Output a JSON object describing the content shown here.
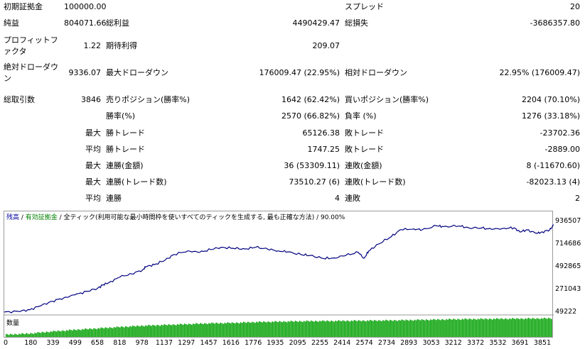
{
  "report": {
    "rows": [
      {
        "c1_label": "初期証拠金",
        "c1_value": "100000.00",
        "c2_label": "",
        "c2_value": "",
        "c3_label": "スプレッド",
        "c3_value": "20"
      },
      {
        "c1_label": "純益",
        "c1_value": "804071.66",
        "c2_label": "総利益",
        "c2_value": "4490429.47",
        "c3_label": "総損失",
        "c3_value": "-3686357.80"
      },
      {
        "c1_label": "プロフィットファクタ",
        "c1_value": "1.22",
        "c2_label": "期待利得",
        "c2_value": "209.07",
        "c3_label": "",
        "c3_value": ""
      },
      {
        "c1_label": "絶対ドローダウン",
        "c1_value": "9336.07",
        "c2_label": "最大ドローダウン",
        "c2_value": "176009.47 (22.95%)",
        "c3_label": "相対ドローダウン",
        "c3_value": "22.95% (176009.47)"
      },
      {
        "c1_label": "総取引数",
        "c1_value": "3846",
        "c2_label": "売りポジション(勝率%)",
        "c2_value": "1642 (62.42%)",
        "c3_label": "買いポジション(勝率%)",
        "c3_value": "2204 (70.10%)"
      },
      {
        "sub": "",
        "c2_label": "勝率(%)",
        "c2_value": "2570 (66.82%)",
        "c3_label": "負率 (%)",
        "c3_value": "1276 (33.18%)"
      },
      {
        "sub": "最大",
        "c2_label": "勝トレード",
        "c2_value": "65126.38",
        "c3_label": "敗トレード",
        "c3_value": "-23702.36"
      },
      {
        "sub": "平均",
        "c2_label": "勝トレード",
        "c2_value": "1747.25",
        "c3_label": "敗トレード",
        "c3_value": "-2889.00"
      },
      {
        "sub": "最大",
        "c2_label": "連勝(金額)",
        "c2_value": "36 (53309.11)",
        "c3_label": "連敗(金額)",
        "c3_value": "8 (-11670.60)"
      },
      {
        "sub": "最大",
        "c2_label": "連勝(トレード数)",
        "c2_value": "73510.27 (6)",
        "c3_label": "連敗(トレード数)",
        "c3_value": "-82023.13 (4)"
      },
      {
        "sub": "平均",
        "c2_label": "連勝",
        "c2_value": "4",
        "c3_label": "連敗",
        "c3_value": "2"
      }
    ]
  },
  "chart": {
    "caption": {
      "balance": "残高",
      "sep1": " / ",
      "equity": "有効証拠金",
      "rest": " / 全ティック(利用可能な最小時間枠を使いすべてのティックを生成する, 最も正確な方法) / 90.00%"
    },
    "volume_label": "数量",
    "colors": {
      "balance": "#000080",
      "volume": "#00a000",
      "border": "#9a9a9a"
    }
  },
  "chart_data": {
    "type": "line",
    "title": "",
    "y_ticks": [
      "936507",
      "714686",
      "492865",
      "271043",
      "49222"
    ],
    "y_tick_values": [
      936507,
      714686,
      492865,
      271043,
      49222
    ],
    "x_ticks": [
      "0",
      "180",
      "339",
      "499",
      "658",
      "818",
      "978",
      "1137",
      "1297",
      "1457",
      "1616",
      "1776",
      "1935",
      "2095",
      "2255",
      "2414",
      "2574",
      "2734",
      "2893",
      "3053",
      "3212",
      "3372",
      "3532",
      "3691",
      "3851"
    ],
    "x_tick_values": [
      0,
      180,
      339,
      499,
      658,
      818,
      978,
      1137,
      1297,
      1457,
      1616,
      1776,
      1935,
      2095,
      2255,
      2414,
      2574,
      2734,
      2893,
      3053,
      3212,
      3372,
      3532,
      3691,
      3851
    ],
    "ylim": [
      49222,
      936507
    ],
    "xlim": [
      0,
      3880
    ],
    "series": [
      {
        "x": [
          0,
          100,
          180,
          260,
          339,
          420,
          499,
          580,
          658,
          700,
          740,
          818,
          900,
          978,
          1000,
          1060,
          1137,
          1200,
          1297,
          1380,
          1457,
          1530,
          1616,
          1700,
          1776,
          1860,
          1935,
          2000,
          2095,
          2160,
          2255,
          2330,
          2414,
          2500,
          2540,
          2574,
          2640,
          2734,
          2800,
          2893,
          2950,
          3053,
          3100,
          3212,
          3280,
          3372,
          3440,
          3532,
          3600,
          3640,
          3691,
          3760,
          3800,
          3851,
          3880
        ],
        "y": [
          57000,
          63000,
          80000,
          120000,
          163000,
          195000,
          225000,
          258000,
          288000,
          325000,
          345000,
          400000,
          430000,
          470000,
          500000,
          520000,
          565000,
          620000,
          655000,
          640000,
          668000,
          690000,
          680000,
          673000,
          690000,
          672000,
          655000,
          645000,
          618000,
          610000,
          580000,
          586000,
          612000,
          640000,
          582000,
          653000,
          720000,
          795000,
          862000,
          870000,
          860000,
          899000,
          892000,
          898000,
          880000,
          878000,
          865000,
          876000,
          880000,
          840000,
          860000,
          825000,
          840000,
          860000,
          906000
        ]
      },
      {
        "name": "数量",
        "values": [
          0.15,
          0.2,
          0.3,
          0.38,
          0.45,
          0.52,
          0.58,
          0.62,
          0.66,
          0.7,
          0.72,
          0.76,
          0.78,
          0.8,
          0.81,
          0.82,
          0.83,
          0.84,
          0.86,
          0.88,
          0.9,
          0.91,
          0.92,
          0.93,
          0.94
        ]
      }
    ]
  }
}
